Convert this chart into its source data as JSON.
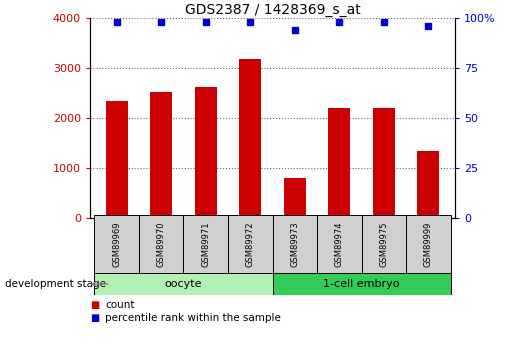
{
  "title": "GDS2387 / 1428369_s_at",
  "samples": [
    "GSM89969",
    "GSM89970",
    "GSM89971",
    "GSM89972",
    "GSM89973",
    "GSM89974",
    "GSM89975",
    "GSM89999"
  ],
  "counts": [
    2350,
    2520,
    2630,
    3180,
    800,
    2200,
    2200,
    1350
  ],
  "percentiles": [
    98,
    98,
    98,
    98,
    94,
    98,
    98,
    96
  ],
  "bar_color": "#cc0000",
  "dot_color": "#0000cc",
  "ylim_left": [
    0,
    4000
  ],
  "ylim_right": [
    0,
    100
  ],
  "yticks_left": [
    0,
    1000,
    2000,
    3000,
    4000
  ],
  "yticks_right": [
    0,
    25,
    50,
    75,
    100
  ],
  "groups": [
    {
      "label": "oocyte",
      "n": 4,
      "color": "#b3f0b3"
    },
    {
      "label": "1-cell embryo",
      "n": 4,
      "color": "#33cc55"
    }
  ],
  "tick_label_color_left": "#cc0000",
  "tick_label_color_right": "#0000cc",
  "legend_count_color": "#cc0000",
  "legend_pct_color": "#0000cc",
  "dev_stage_label": "development stage",
  "background_color": "#ffffff",
  "sample_box_color": "#d0d0d0"
}
